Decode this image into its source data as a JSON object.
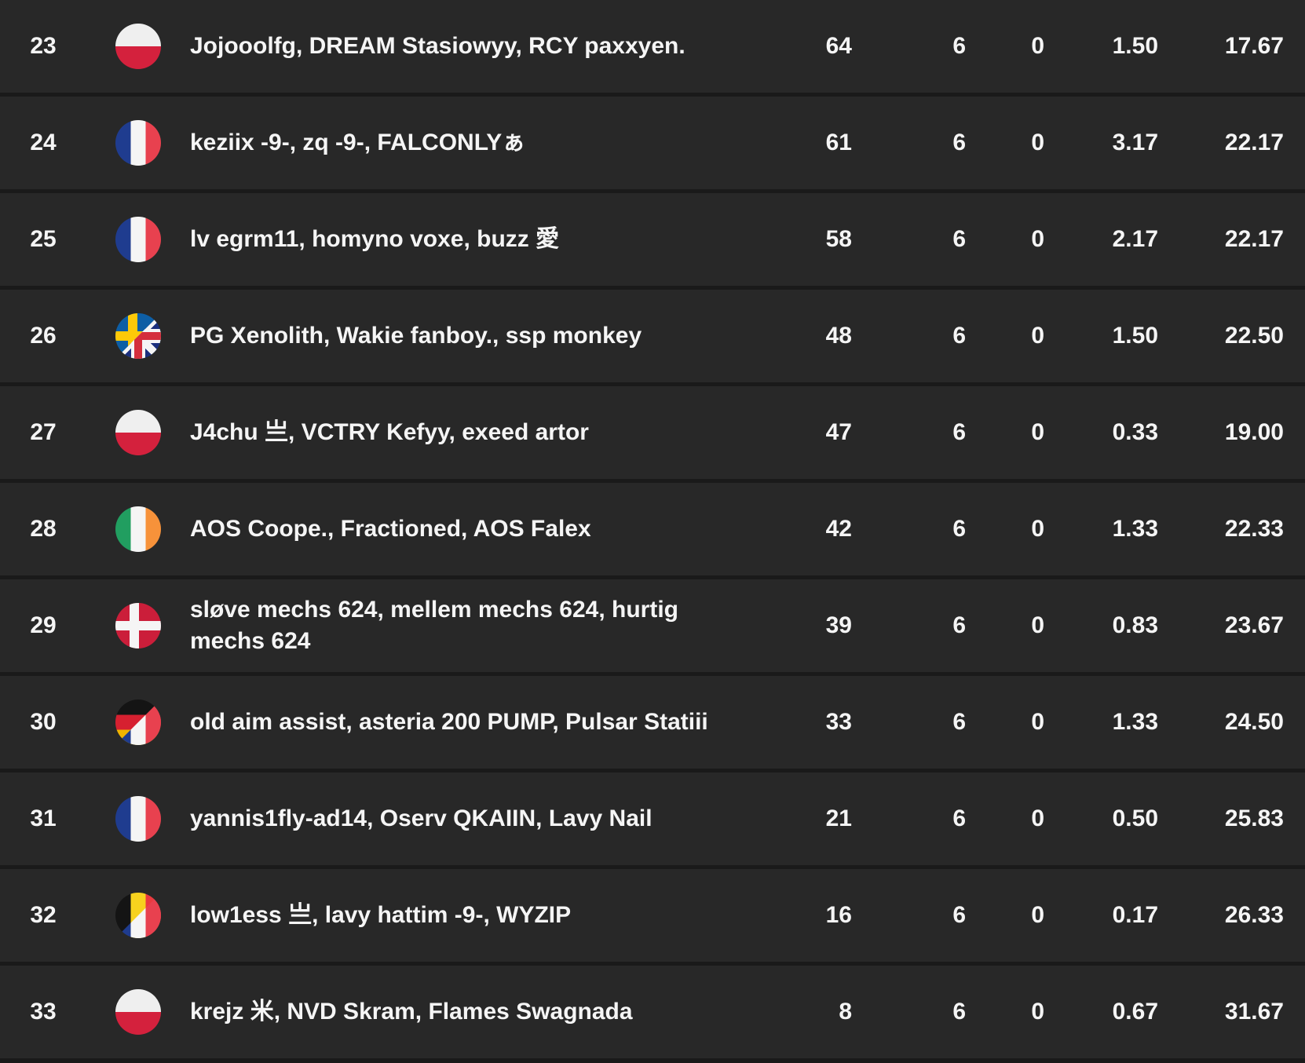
{
  "page": {
    "background": "#1a1a1a",
    "row_background": "#282828",
    "separator_color": "#1a1a1a",
    "text_color": "#f5f5f5"
  },
  "leaderboard": {
    "rows": [
      {
        "rank": "23",
        "flag": "poland",
        "players": "Jojooolfg, DREAM Stasiowyy, RCY paxxyen.",
        "stats": [
          "64",
          "6",
          "0",
          "1.50",
          "17.67"
        ]
      },
      {
        "rank": "24",
        "flag": "france",
        "players": "keziix -9-, zq -9-, FALCONLYぁ",
        "stats": [
          "61",
          "6",
          "0",
          "3.17",
          "22.17"
        ]
      },
      {
        "rank": "25",
        "flag": "france",
        "players": "lv egrm11, homyno voxe, buzz 愛",
        "stats": [
          "58",
          "6",
          "0",
          "2.17",
          "22.17"
        ]
      },
      {
        "rank": "26",
        "flag": "sweden-uk",
        "players": "PG Xenolith, Wakie fanboy., ssp monkey",
        "stats": [
          "48",
          "6",
          "0",
          "1.50",
          "22.50"
        ]
      },
      {
        "rank": "27",
        "flag": "poland",
        "players": "J4chu 亗, VCTRY Kefyy, exeed artor",
        "stats": [
          "47",
          "6",
          "0",
          "0.33",
          "19.00"
        ]
      },
      {
        "rank": "28",
        "flag": "ireland",
        "players": "AOS Coope., Fractioned, AOS Falex",
        "stats": [
          "42",
          "6",
          "0",
          "1.33",
          "22.33"
        ]
      },
      {
        "rank": "29",
        "flag": "denmark",
        "players": "sløve mechs 624, mellem mechs 624, hurtig mechs 624",
        "stats": [
          "39",
          "6",
          "0",
          "0.83",
          "23.67"
        ]
      },
      {
        "rank": "30",
        "flag": "germany-france",
        "players": "old aim assist, asteria 200 PUMP, Pulsar Statiii",
        "stats": [
          "33",
          "6",
          "0",
          "1.33",
          "24.50"
        ]
      },
      {
        "rank": "31",
        "flag": "france",
        "players": "yannis1fly-ad14, Oserv QKAIIN, Lavy Nail",
        "stats": [
          "21",
          "6",
          "0",
          "0.50",
          "25.83"
        ]
      },
      {
        "rank": "32",
        "flag": "belgium-france",
        "players": "low1ess 亗, lavy hattim -9-, WYZIP",
        "stats": [
          "16",
          "6",
          "0",
          "0.17",
          "26.33"
        ]
      },
      {
        "rank": "33",
        "flag": "poland",
        "players": "krejz 米, NVD Skram, Flames Swagnada",
        "stats": [
          "8",
          "6",
          "0",
          "0.67",
          "31.67"
        ]
      }
    ],
    "flag_colors": {
      "poland": [
        "#efefef",
        "#d4213d"
      ],
      "france": [
        "#1f3c8f",
        "#f5f5f5",
        "#e8414f"
      ],
      "ireland": [
        "#219e60",
        "#f5f5f5",
        "#f7923a"
      ],
      "denmark": [
        "#cb1e3a",
        "#f5f5f5"
      ],
      "sweden": [
        "#0d5ea5",
        "#fdc908"
      ],
      "uk": [
        "#1b2f7d",
        "#f5f5f5",
        "#d42e3c"
      ],
      "germany": [
        "#141414",
        "#d62030",
        "#f0b400"
      ],
      "belgium": [
        "#141414",
        "#f7d21e",
        "#ea3a3f"
      ]
    }
  }
}
